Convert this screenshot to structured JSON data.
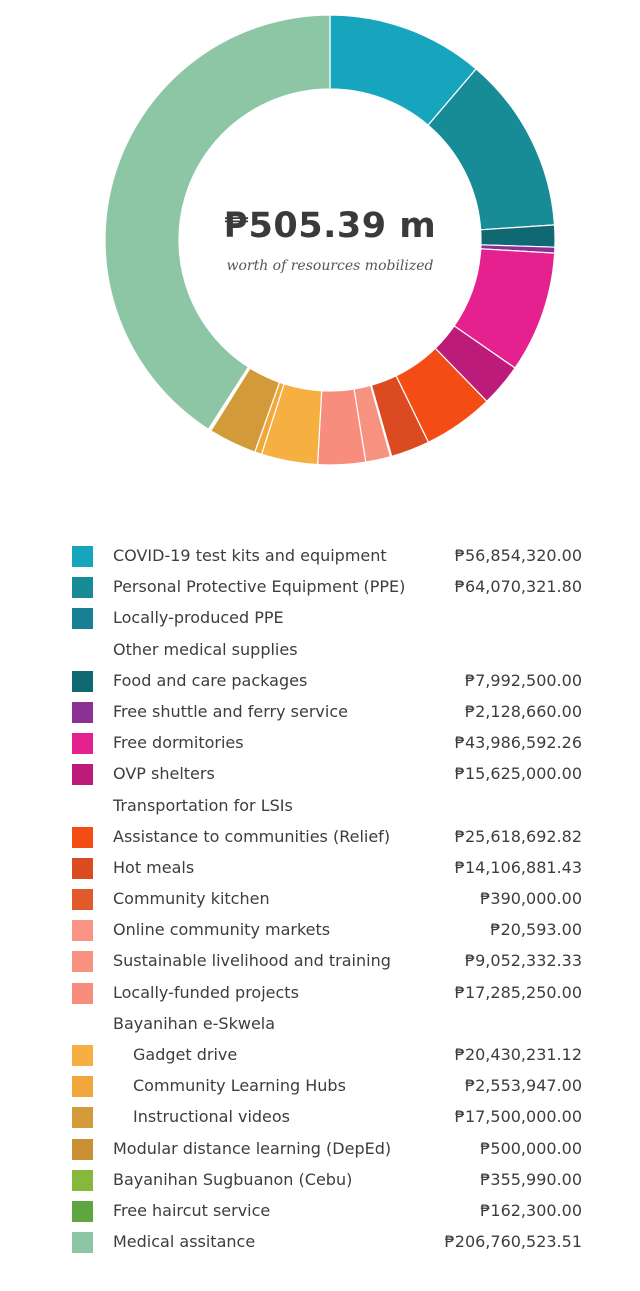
{
  "center": {
    "total": "₱505.39 m",
    "caption": "worth of resources mobilized"
  },
  "chart_data": {
    "type": "donut",
    "total": 505.39,
    "unit": "₱",
    "items": [
      {
        "label": "COVID-19 test kits and equipment",
        "value_text": "₱56,854,320.00",
        "value": 56854320.0,
        "color": "#17a4bd",
        "indent": false
      },
      {
        "label": "Personal Protective Equipment (PPE)",
        "value_text": "₱64,070,321.80",
        "value": 64070321.8,
        "color": "#178c97",
        "indent": false
      },
      {
        "label": "Locally-produced PPE",
        "value_text": "",
        "value": 0,
        "color": "#197f93",
        "indent": false
      },
      {
        "label": "Other medical supplies",
        "value_text": "",
        "value": 0,
        "color": "",
        "indent": false
      },
      {
        "label": "Food and care packages",
        "value_text": "₱7,992,500.00",
        "value": 7992500.0,
        "color": "#0f6872",
        "indent": false
      },
      {
        "label": "Free shuttle and ferry service",
        "value_text": "₱2,128,660.00",
        "value": 2128660.0,
        "color": "#8b3193",
        "indent": false
      },
      {
        "label": "Free dormitories",
        "value_text": "₱43,986,592.26",
        "value": 43986592.26,
        "color": "#e5208f",
        "indent": false
      },
      {
        "label": "OVP shelters",
        "value_text": "₱15,625,000.00",
        "value": 15625000.0,
        "color": "#bd1b7a",
        "indent": false
      },
      {
        "label": "Transportation for LSIs",
        "value_text": "",
        "value": 0,
        "color": "",
        "indent": false
      },
      {
        "label": "Assistance to communities (Relief)",
        "value_text": "₱25,618,692.82",
        "value": 25618692.82,
        "color": "#f34d15",
        "indent": false
      },
      {
        "label": "Hot meals",
        "value_text": "₱14,106,881.43",
        "value": 14106881.43,
        "color": "#dc4a22",
        "indent": false
      },
      {
        "label": "Community kitchen",
        "value_text": "₱390,000.00",
        "value": 390000.0,
        "color": "#e05a2b",
        "indent": false
      },
      {
        "label": "Online community markets",
        "value_text": "₱20,593.00",
        "value": 20593.0,
        "color": "#f99484",
        "indent": false
      },
      {
        "label": "Sustainable livelihood and training",
        "value_text": "₱9,052,332.33",
        "value": 9052332.33,
        "color": "#f79180",
        "indent": false
      },
      {
        "label": "Locally-funded projects",
        "value_text": "₱17,285,250.00",
        "value": 17285250.0,
        "color": "#f88d7d",
        "indent": false
      },
      {
        "label": "Bayanihan e-Skwela",
        "value_text": "",
        "value": 0,
        "color": "",
        "indent": false
      },
      {
        "label": "Gadget drive",
        "value_text": "₱20,430,231.12",
        "value": 20430231.12,
        "color": "#f6b041",
        "indent": true
      },
      {
        "label": "Community Learning Hubs",
        "value_text": "₱2,553,947.00",
        "value": 2553947.0,
        "color": "#f0a83c",
        "indent": true
      },
      {
        "label": "Instructional videos",
        "value_text": "₱17,500,000.00",
        "value": 17500000.0,
        "color": "#d39a39",
        "indent": true
      },
      {
        "label": "Modular distance learning (DepEd)",
        "value_text": "₱500,000.00",
        "value": 500000.0,
        "color": "#c88f34",
        "indent": false
      },
      {
        "label": "Bayanihan Sugbuanon (Cebu)",
        "value_text": "₱355,990.00",
        "value": 355990.0,
        "color": "#86b83d",
        "indent": false
      },
      {
        "label": "Free haircut service",
        "value_text": "₱162,300.00",
        "value": 162300.0,
        "color": "#5fa641",
        "indent": false
      },
      {
        "label": "Medical assitance",
        "value_text": "₱206,760,523.51",
        "value": 206760523.51,
        "color": "#8dc6a4",
        "indent": false
      }
    ]
  }
}
